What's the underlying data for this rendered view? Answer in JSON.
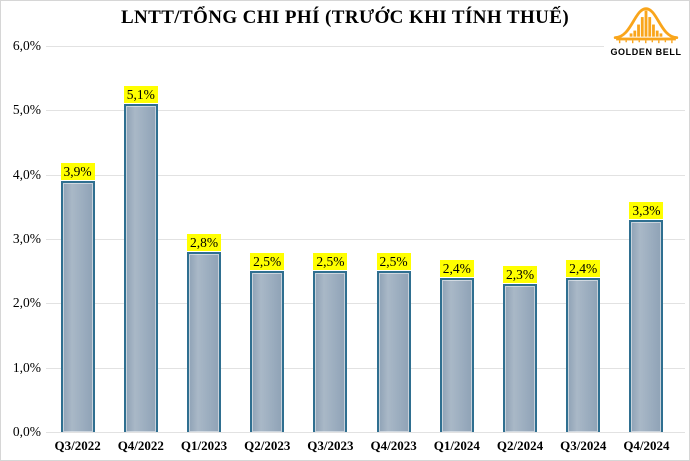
{
  "title": "LNTT/TỔNG CHI PHÍ (TRƯỚC KHI TÍNH THUẾ)",
  "logo": {
    "text": "GOLDEN BELL",
    "color": "#f9a51b"
  },
  "colors": {
    "bar_fill": "#9bacbe",
    "bar_border": "#2f6f90",
    "label_background": "#ffff00",
    "gridline": "#e2e2e2",
    "logo_gold": "#f9a51b"
  },
  "chart_data": {
    "type": "bar",
    "title": "LNTT/TỔNG CHI PHÍ (TRƯỚC KHI TÍNH THUẾ)",
    "categories": [
      "Q3/2022",
      "Q4/2022",
      "Q1/2023",
      "Q2/2023",
      "Q3/2023",
      "Q4/2023",
      "Q1/2024",
      "Q2/2024",
      "Q3/2024",
      "Q4/2024"
    ],
    "values": [
      3.9,
      5.1,
      2.8,
      2.5,
      2.5,
      2.5,
      2.4,
      2.3,
      2.4,
      3.3
    ],
    "value_labels": [
      "3,9%",
      "5,1%",
      "2,8%",
      "2,5%",
      "2,5%",
      "2,5%",
      "2,4%",
      "2,3%",
      "2,4%",
      "3,3%"
    ],
    "xlabel": "",
    "ylabel": "",
    "ylim": [
      0,
      6
    ],
    "ytick_step": 1,
    "ytick_labels": [
      "0,0%",
      "1,0%",
      "2,0%",
      "3,0%",
      "4,0%",
      "5,0%",
      "6,0%"
    ],
    "grid": true,
    "legend": false,
    "data_label_style": "yellow-highlight"
  }
}
